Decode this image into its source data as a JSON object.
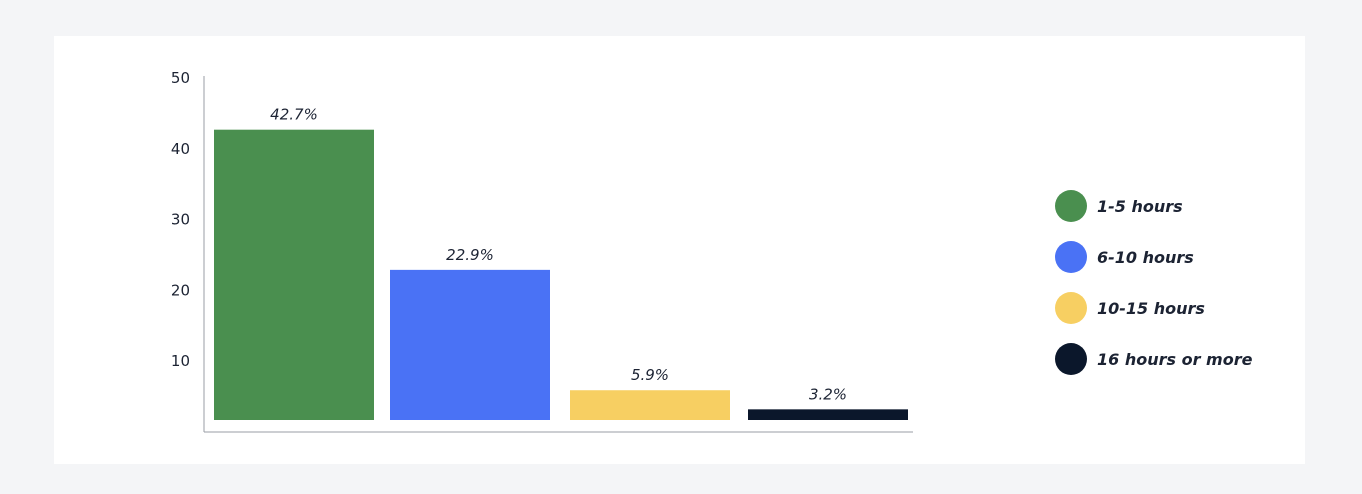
{
  "chart_data": {
    "type": "bar",
    "categories": [
      "1-5 hours",
      "6-10 hours",
      "10-15 hours",
      "16 hours or more"
    ],
    "values": [
      42.7,
      22.9,
      5.9,
      3.2
    ],
    "data_labels": [
      "42.7%",
      "22.9%",
      "5.9%",
      "3.2%"
    ],
    "colors": [
      "#4a8f4f",
      "#4a72f5",
      "#f7cf62",
      "#0b172b"
    ],
    "yticks": [
      10,
      20,
      30,
      40,
      50
    ],
    "ylim": [
      0,
      50
    ],
    "grid": false,
    "legend_position": "right",
    "title": "",
    "xlabel": "",
    "ylabel": ""
  }
}
